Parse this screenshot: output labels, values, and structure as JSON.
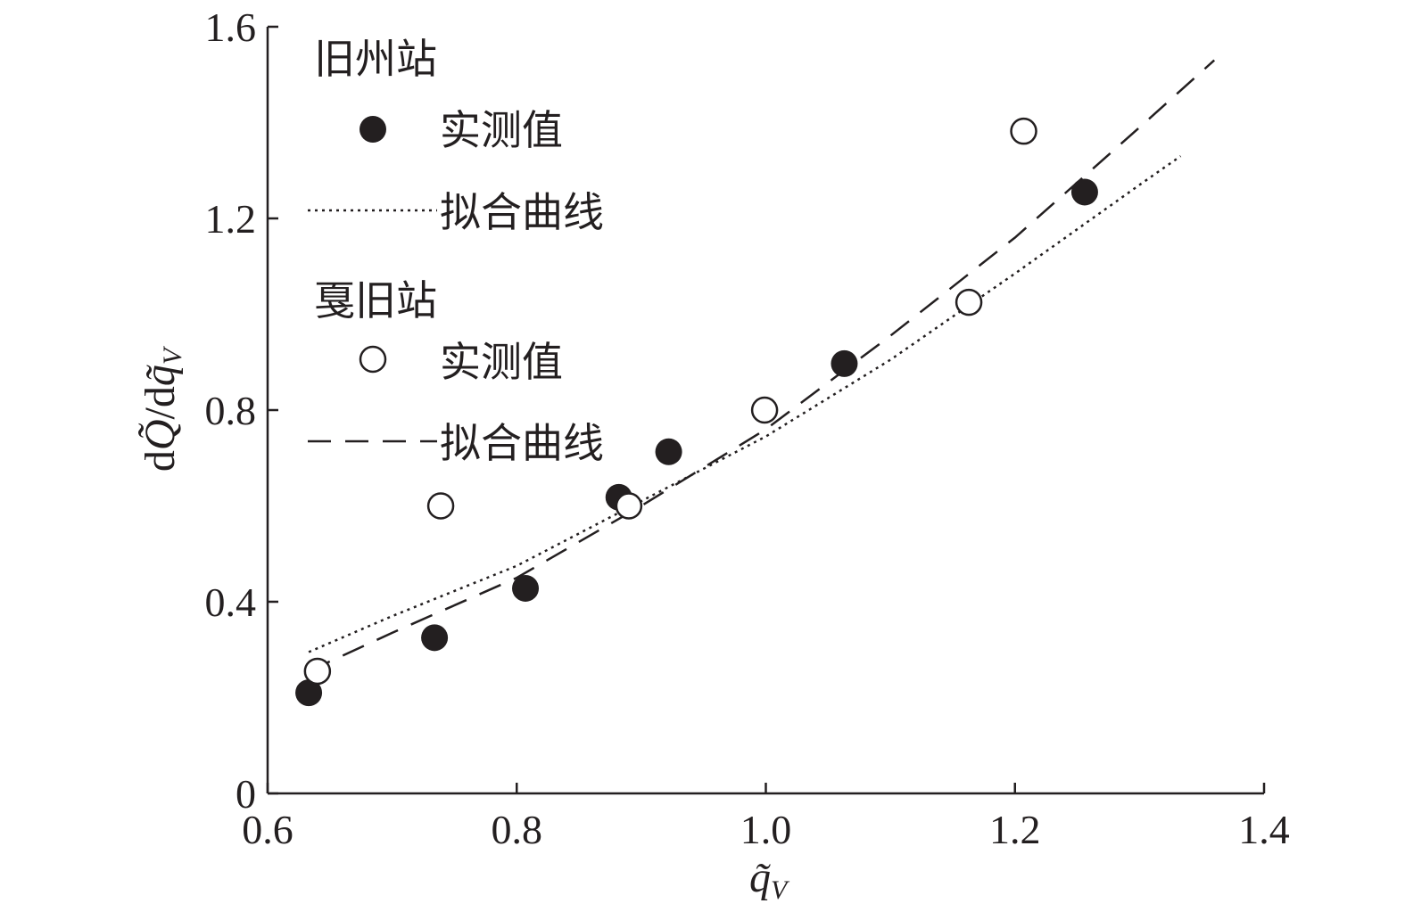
{
  "chart_data": {
    "type": "scatter",
    "xlabel": "q̃V",
    "ylabel": "dQ̃/dq̃V",
    "xlim": [
      0.6,
      1.4
    ],
    "ylim": [
      0,
      1.6
    ],
    "xticks": [
      "0.6",
      "0.8",
      "1.0",
      "1.2",
      "1.4"
    ],
    "yticks": [
      "0",
      "0.4",
      "0.8",
      "1.2",
      "1.6"
    ],
    "grid": false,
    "legend_position": "top-left",
    "colors": {
      "ink": "#231f20",
      "background": "#ffffff"
    },
    "legend": {
      "group1_title": "旧州站",
      "group1_measured": "实测值",
      "group1_fit": "拟合曲线",
      "group2_title": "戛旧站",
      "group2_measured": "实测值",
      "group2_fit": "拟合曲线"
    },
    "series": [
      {
        "name": "实测值",
        "group": "旧州站",
        "kind": "points",
        "marker": "filled-circle",
        "points": [
          [
            0.633,
            0.21
          ],
          [
            0.734,
            0.325
          ],
          [
            0.807,
            0.428
          ],
          [
            0.882,
            0.618
          ],
          [
            0.922,
            0.713
          ],
          [
            1.063,
            0.897
          ],
          [
            1.256,
            1.255
          ]
        ]
      },
      {
        "name": "拟合曲线",
        "group": "旧州站",
        "kind": "line",
        "dash": "dotted",
        "points": [
          [
            0.633,
            0.295
          ],
          [
            0.7,
            0.37
          ],
          [
            0.8,
            0.475
          ],
          [
            0.9,
            0.61
          ],
          [
            1.0,
            0.745
          ],
          [
            1.1,
            0.905
          ],
          [
            1.2,
            1.085
          ],
          [
            1.3,
            1.27
          ],
          [
            1.333,
            1.33
          ]
        ]
      },
      {
        "name": "实测值",
        "group": "戛旧站",
        "kind": "points",
        "marker": "open-circle",
        "points": [
          [
            0.64,
            0.255
          ],
          [
            0.739,
            0.6
          ],
          [
            0.89,
            0.6
          ],
          [
            0.999,
            0.8
          ],
          [
            1.163,
            1.025
          ],
          [
            1.207,
            1.382
          ]
        ]
      },
      {
        "name": "拟合曲线",
        "group": "戛旧站",
        "kind": "line",
        "dash": "dashed",
        "points": [
          [
            0.633,
            0.255
          ],
          [
            0.7,
            0.335
          ],
          [
            0.8,
            0.45
          ],
          [
            0.9,
            0.6
          ],
          [
            1.0,
            0.76
          ],
          [
            1.1,
            0.955
          ],
          [
            1.2,
            1.16
          ],
          [
            1.3,
            1.39
          ],
          [
            1.36,
            1.53
          ]
        ]
      }
    ]
  }
}
